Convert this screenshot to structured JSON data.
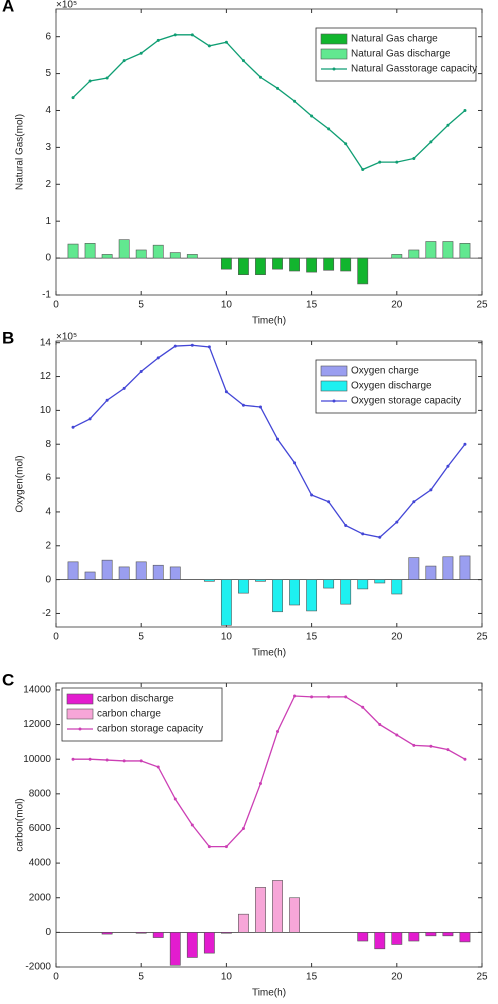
{
  "chart_data": [
    {
      "type": "combo",
      "panel_label": "A",
      "exponent_label": "×10⁵",
      "xlabel": "Time(h)",
      "ylabel": "Natural Gas(mol)",
      "xlim": [
        0,
        25
      ],
      "xticks": [
        0,
        5,
        10,
        15,
        20,
        25
      ],
      "ylim": [
        -1,
        6.75
      ],
      "yticks": [
        -1,
        0,
        1,
        2,
        3,
        4,
        5,
        6
      ],
      "legend": "upper right",
      "x": [
        1,
        2,
        3,
        4,
        5,
        6,
        7,
        8,
        9,
        10,
        11,
        12,
        13,
        14,
        15,
        16,
        17,
        18,
        19,
        20,
        21,
        22,
        23,
        24
      ],
      "series": [
        {
          "name": "Natural Gas charge",
          "kind": "bar",
          "color": "#12b52e",
          "values": [
            null,
            null,
            null,
            null,
            null,
            null,
            null,
            null,
            null,
            -0.3,
            -0.45,
            -0.45,
            -0.3,
            -0.35,
            -0.38,
            -0.33,
            -0.35,
            -0.7,
            null,
            null,
            null,
            null,
            null,
            null
          ]
        },
        {
          "name": "Natural Gas discharge",
          "kind": "bar",
          "color": "#62e890",
          "values": [
            0.38,
            0.4,
            0.1,
            0.5,
            0.22,
            0.35,
            0.15,
            0.1,
            null,
            null,
            null,
            null,
            null,
            null,
            null,
            null,
            null,
            null,
            null,
            0.1,
            0.22,
            0.45,
            0.45,
            0.4
          ]
        },
        {
          "name": "Natural Gasstorage capacity",
          "kind": "line",
          "color": "#0f9e73",
          "values": [
            4.35,
            4.8,
            4.88,
            5.35,
            5.55,
            5.9,
            6.05,
            6.05,
            5.75,
            5.85,
            5.35,
            4.9,
            4.6,
            4.25,
            3.85,
            3.5,
            3.1,
            2.4,
            2.6,
            2.6,
            2.7,
            3.15,
            3.6,
            4.0
          ]
        }
      ]
    },
    {
      "type": "combo",
      "panel_label": "B",
      "exponent_label": "×10⁵",
      "xlabel": "Time(h)",
      "ylabel": "Oxygen(mol)",
      "xlim": [
        0,
        25
      ],
      "xticks": [
        0,
        5,
        10,
        15,
        20,
        25
      ],
      "ylim": [
        -2.8,
        14.1
      ],
      "yticks": [
        -2,
        0,
        2,
        4,
        6,
        8,
        10,
        12,
        14
      ],
      "legend": "upper right",
      "x": [
        1,
        2,
        3,
        4,
        5,
        6,
        7,
        8,
        9,
        10,
        11,
        12,
        13,
        14,
        15,
        16,
        17,
        18,
        19,
        20,
        21,
        22,
        23,
        24
      ],
      "series": [
        {
          "name": "Oxygen charge",
          "kind": "bar",
          "color": "#9a9ef0",
          "values": [
            1.05,
            0.45,
            1.15,
            0.75,
            1.05,
            0.85,
            0.75,
            null,
            null,
            null,
            null,
            null,
            null,
            null,
            null,
            null,
            null,
            null,
            null,
            null,
            1.3,
            0.8,
            1.35,
            1.4
          ]
        },
        {
          "name": "Oxygen discharge",
          "kind": "bar",
          "color": "#1ef0f0",
          "values": [
            null,
            null,
            null,
            null,
            null,
            null,
            null,
            null,
            -0.1,
            -2.7,
            -0.8,
            -0.1,
            -1.9,
            -1.5,
            -1.85,
            -0.5,
            -1.45,
            -0.55,
            -0.2,
            -0.85,
            null,
            null,
            null,
            null
          ]
        },
        {
          "name": "Oxygen storage capacity",
          "kind": "line",
          "color": "#4346d6",
          "values": [
            9.0,
            9.5,
            10.6,
            11.3,
            12.3,
            13.1,
            13.8,
            13.85,
            13.75,
            11.1,
            10.3,
            10.2,
            8.3,
            6.9,
            5.0,
            4.6,
            3.2,
            2.7,
            2.5,
            3.4,
            4.6,
            5.3,
            6.7,
            8.0
          ]
        }
      ]
    },
    {
      "type": "combo",
      "panel_label": "C",
      "xlabel": "Time(h)",
      "ylabel": "carbon(mol)",
      "xlim": [
        0,
        25
      ],
      "xticks": [
        0,
        5,
        10,
        15,
        20,
        25
      ],
      "ylim": [
        -2000,
        14400
      ],
      "yticks": [
        -2000,
        0,
        2000,
        4000,
        6000,
        8000,
        10000,
        12000,
        14000
      ],
      "legend": "upper left",
      "x": [
        1,
        2,
        3,
        4,
        5,
        6,
        7,
        8,
        9,
        10,
        11,
        12,
        13,
        14,
        15,
        16,
        17,
        18,
        19,
        20,
        21,
        22,
        23,
        24
      ],
      "series": [
        {
          "name": "carbon discharge",
          "kind": "bar",
          "color": "#e31ccf",
          "values": [
            null,
            null,
            -100,
            null,
            -50,
            -300,
            -1900,
            -1450,
            -1200,
            -50,
            null,
            null,
            null,
            null,
            null,
            null,
            null,
            -500,
            -950,
            -700,
            -500,
            -200,
            -200,
            -550
          ]
        },
        {
          "name": "carbon charge",
          "kind": "bar",
          "color": "#f7a6d8",
          "values": [
            null,
            null,
            null,
            null,
            null,
            null,
            null,
            null,
            null,
            null,
            1050,
            2600,
            3000,
            2000,
            null,
            null,
            null,
            null,
            null,
            null,
            null,
            null,
            null,
            null
          ]
        },
        {
          "name": "carbon storage capacity",
          "kind": "line",
          "color": "#cc3fb4",
          "values": [
            10000,
            10000,
            9950,
            9900,
            9900,
            9550,
            7700,
            6200,
            4950,
            4950,
            6000,
            8600,
            11600,
            13650,
            13600,
            13600,
            13600,
            13000,
            12000,
            11400,
            10800,
            10750,
            10550,
            10000
          ]
        }
      ]
    }
  ]
}
